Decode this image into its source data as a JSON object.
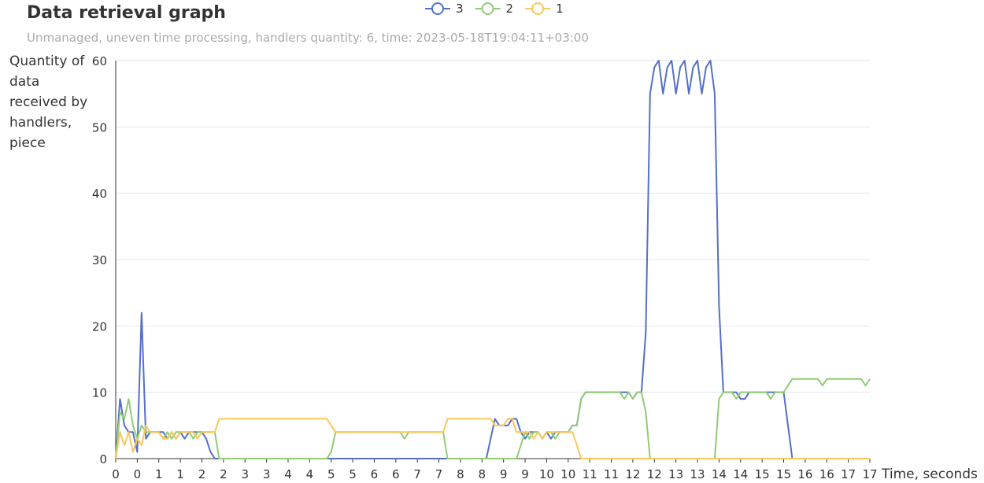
{
  "chart_data": {
    "type": "line",
    "title": "Data retrieval graph",
    "subtitle": "Unmanaged, uneven time processing, handlers quantity: 6, time: 2023-05-18T19:04:11+03:00",
    "y_label": "Quantity of data received by handlers, piece",
    "x_label": "Time, seconds",
    "ylim": [
      0,
      60
    ],
    "yticks": [
      0,
      10,
      20,
      30,
      40,
      50,
      60
    ],
    "grid": true,
    "categories": [
      "0",
      null,
      null,
      null,
      null,
      "0",
      null,
      null,
      null,
      null,
      "1",
      null,
      null,
      null,
      null,
      "1",
      null,
      null,
      null,
      null,
      "2",
      null,
      null,
      null,
      null,
      "2",
      null,
      null,
      null,
      null,
      "3",
      null,
      null,
      null,
      null,
      "3",
      null,
      null,
      null,
      null,
      "4",
      null,
      null,
      null,
      null,
      "4",
      null,
      null,
      null,
      null,
      "5",
      null,
      null,
      null,
      null,
      "5",
      null,
      null,
      null,
      null,
      "6",
      null,
      null,
      null,
      null,
      "6",
      null,
      null,
      null,
      null,
      "7",
      null,
      null,
      null,
      null,
      "7",
      null,
      null,
      null,
      null,
      "8",
      null,
      null,
      null,
      null,
      "8",
      null,
      null,
      null,
      null,
      "9",
      null,
      null,
      null,
      null,
      "9",
      null,
      null,
      null,
      null,
      "10",
      null,
      null,
      null,
      null,
      "10",
      null,
      null,
      null,
      null,
      "11",
      null,
      null,
      null,
      null,
      "11",
      null,
      null,
      null,
      null,
      "12",
      null,
      null,
      null,
      null,
      "12",
      null,
      null,
      null,
      null,
      "13",
      null,
      null,
      null,
      null,
      "13",
      null,
      null,
      null,
      null,
      "14",
      null,
      null,
      null,
      null,
      "14",
      null,
      null,
      null,
      null,
      "15",
      null,
      null,
      null,
      null,
      "15",
      null,
      null,
      null,
      null,
      "16",
      null,
      null,
      null,
      null,
      "16",
      null,
      null,
      null,
      null,
      "17",
      null,
      null,
      null,
      null,
      "17"
    ],
    "series": [
      {
        "name": "3",
        "color": "#5470c6",
        "values": [
          0,
          9,
          5,
          4,
          4,
          1,
          22,
          3,
          4,
          4,
          4,
          4,
          3,
          4,
          3,
          4,
          3,
          4,
          4,
          4,
          4,
          3,
          1,
          0,
          0,
          0,
          0,
          0,
          0,
          0,
          0,
          0,
          0,
          0,
          0,
          0,
          0,
          0,
          0,
          0,
          0,
          0,
          0,
          0,
          0,
          0,
          0,
          0,
          0,
          0,
          0,
          0,
          0,
          0,
          0,
          0,
          0,
          0,
          0,
          0,
          0,
          0,
          0,
          0,
          0,
          0,
          0,
          0,
          0,
          0,
          0,
          0,
          0,
          0,
          0,
          0,
          0,
          0,
          0,
          0,
          0,
          0,
          0,
          0,
          0,
          0,
          0,
          3,
          6,
          5,
          5,
          5,
          6,
          6,
          4,
          3,
          4,
          4,
          4,
          3,
          4,
          3,
          4,
          4,
          4,
          4,
          5,
          5,
          9,
          10,
          10,
          10,
          10,
          10,
          10,
          10,
          10,
          10,
          10,
          10,
          9,
          10,
          10,
          19,
          55,
          59,
          60,
          55,
          59,
          60,
          55,
          59,
          60,
          55,
          59,
          60,
          55,
          59,
          60,
          55,
          23,
          10,
          10,
          10,
          10,
          9,
          9,
          10,
          10,
          10,
          10,
          10,
          10,
          10,
          10,
          10,
          5,
          0,
          0,
          0,
          0,
          0,
          0,
          0,
          0,
          0,
          0,
          0,
          0,
          0,
          0,
          0,
          0,
          0,
          0,
          0
        ]
      },
      {
        "name": "2",
        "color": "#91cc75",
        "values": [
          0,
          7,
          6,
          9,
          5,
          3,
          5,
          4,
          4,
          4,
          4,
          3,
          4,
          3,
          4,
          4,
          4,
          4,
          3,
          4,
          4,
          4,
          4,
          4,
          0,
          0,
          0,
          0,
          0,
          0,
          0,
          0,
          0,
          0,
          0,
          0,
          0,
          0,
          0,
          0,
          0,
          0,
          0,
          0,
          0,
          0,
          0,
          0,
          0,
          0,
          1,
          4,
          4,
          4,
          4,
          4,
          4,
          4,
          4,
          4,
          4,
          4,
          4,
          4,
          4,
          4,
          4,
          3,
          4,
          4,
          4,
          4,
          4,
          4,
          4,
          4,
          4,
          0,
          0,
          0,
          0,
          0,
          0,
          0,
          0,
          0,
          0,
          0,
          0,
          0,
          0,
          0,
          0,
          0,
          2,
          4,
          3,
          4,
          4,
          3,
          4,
          4,
          3,
          4,
          4,
          4,
          5,
          5,
          9,
          10,
          10,
          10,
          10,
          10,
          10,
          10,
          10,
          10,
          9,
          10,
          9,
          10,
          10,
          7,
          0,
          0,
          0,
          0,
          0,
          0,
          0,
          0,
          0,
          0,
          0,
          0,
          0,
          0,
          0,
          0,
          9,
          10,
          10,
          10,
          9,
          10,
          10,
          10,
          10,
          10,
          10,
          10,
          9,
          10,
          10,
          10,
          11,
          12,
          12,
          12,
          12,
          12,
          12,
          12,
          11,
          12,
          12,
          12,
          12,
          12,
          12,
          12,
          12,
          12,
          11,
          12
        ]
      },
      {
        "name": "1",
        "color": "#fac858",
        "values": [
          0,
          4,
          2,
          4,
          1,
          3,
          2,
          5,
          4,
          4,
          4,
          3,
          3,
          4,
          3,
          4,
          4,
          4,
          4,
          3,
          4,
          4,
          4,
          4,
          6,
          6,
          6,
          6,
          6,
          6,
          6,
          6,
          6,
          6,
          6,
          6,
          6,
          6,
          6,
          6,
          6,
          6,
          6,
          6,
          6,
          6,
          6,
          6,
          6,
          6,
          5,
          4,
          4,
          4,
          4,
          4,
          4,
          4,
          4,
          4,
          4,
          4,
          4,
          4,
          4,
          4,
          4,
          4,
          4,
          4,
          4,
          4,
          4,
          4,
          4,
          4,
          4,
          6,
          6,
          6,
          6,
          6,
          6,
          6,
          6,
          6,
          6,
          6,
          5,
          5,
          5,
          6,
          6,
          4,
          4,
          4,
          4,
          3,
          4,
          3,
          4,
          4,
          4,
          4,
          4,
          4,
          4,
          2,
          0,
          0,
          0,
          0,
          0,
          0,
          0,
          0,
          0,
          0,
          0,
          0,
          0,
          0,
          0,
          0,
          0,
          0,
          0,
          0,
          0,
          0,
          0,
          0,
          0,
          0,
          0,
          0,
          0,
          0,
          0,
          0,
          0,
          0,
          0,
          0,
          0,
          0,
          0,
          0,
          0,
          0,
          0,
          0,
          0,
          0,
          0,
          0,
          0,
          0,
          0,
          0,
          0,
          0,
          0,
          0,
          0,
          0,
          0,
          0,
          0,
          0,
          0,
          0,
          0,
          0,
          0,
          0
        ]
      }
    ]
  }
}
